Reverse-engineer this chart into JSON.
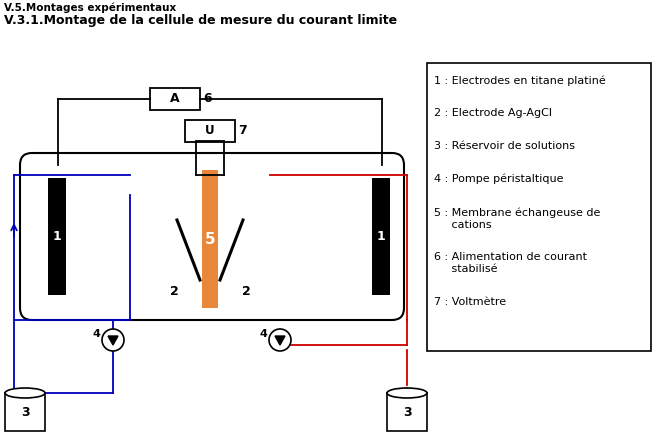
{
  "title_main": "V.3.1.Montage de la cellule de mesure du courant limite",
  "title_sub": "V.5.Montages expérimentaux",
  "legend_items": [
    "1 : Electrodes en titane platiné",
    "2 : Electrode Ag-AgCl",
    "3 : Réservoir de solutions",
    "4 : Pompe péristaltique",
    "5 : Membrane échangeuse de\ncations",
    "6 : Alimentation de courant\nstabilisé",
    "7 : Voltmètre"
  ],
  "colors": {
    "black": "#000000",
    "blue": "#0000bb",
    "red": "#cc0000",
    "orange": "#e8873a",
    "white": "#ffffff"
  }
}
